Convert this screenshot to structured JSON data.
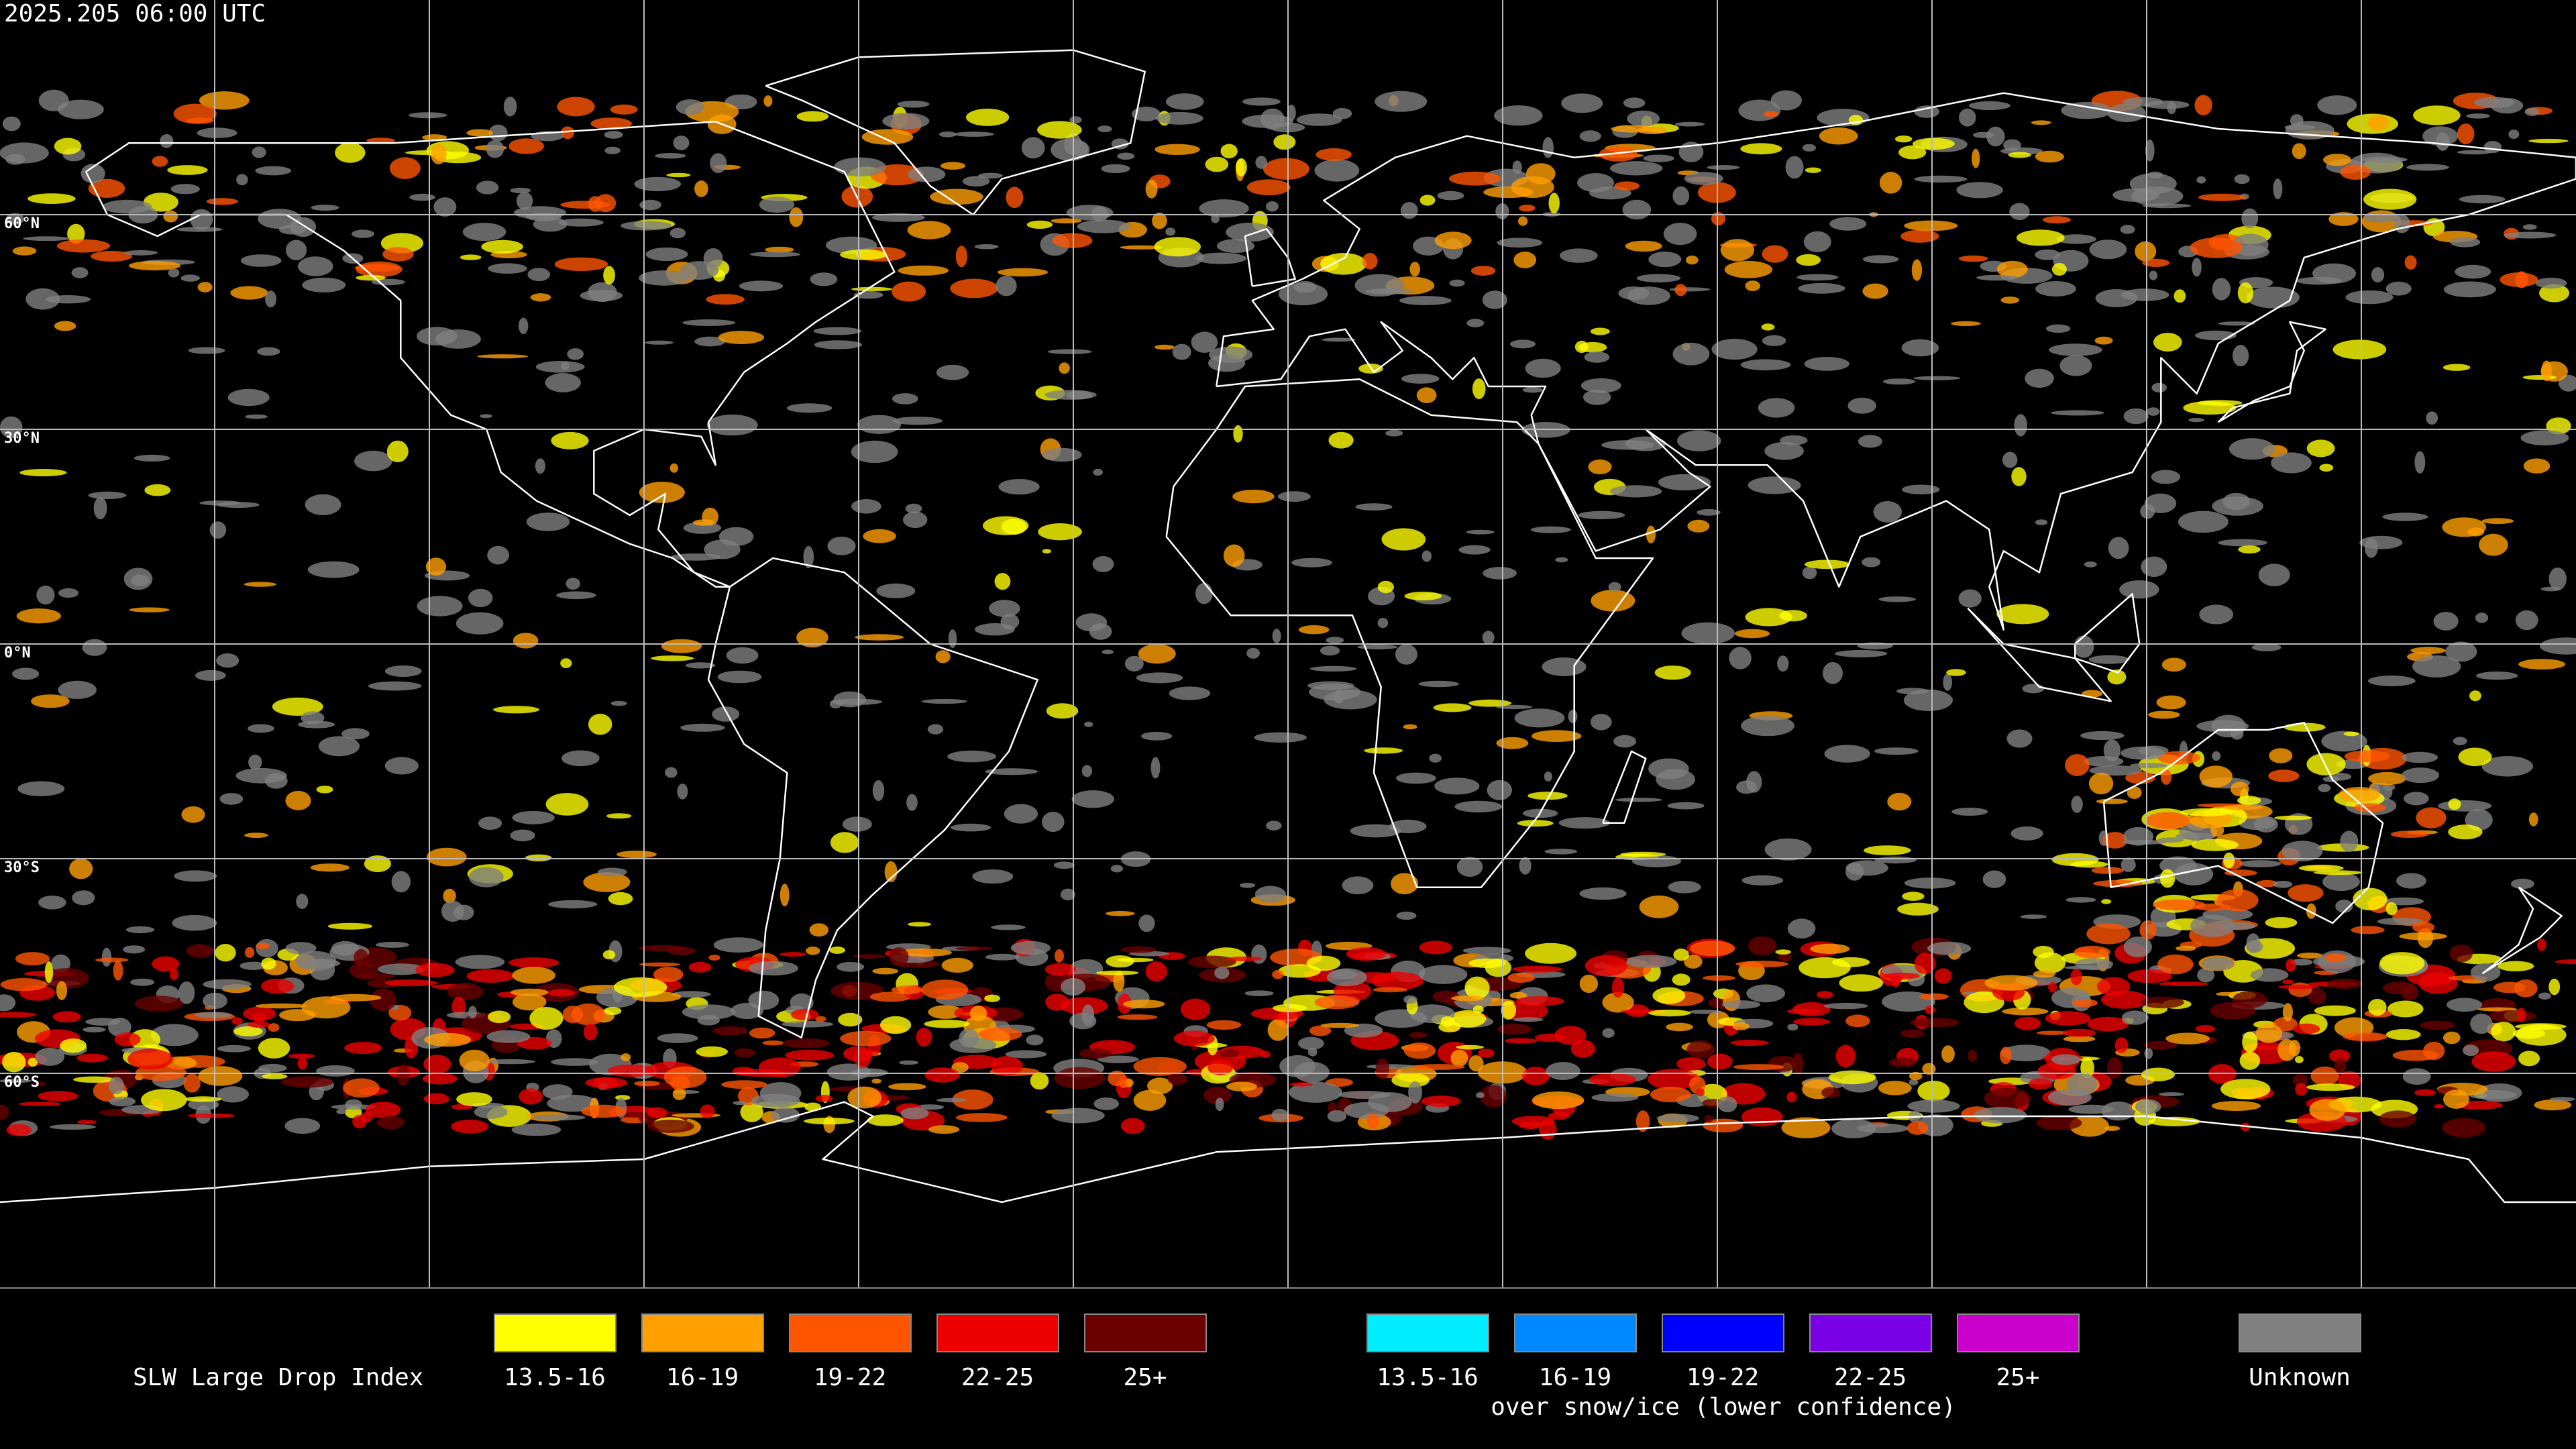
{
  "timestamp": "2025.205 06:00 UTC",
  "latitude_labels": [
    "60°N",
    "30°N",
    "0°N",
    "30°S",
    "60°S"
  ],
  "legend": {
    "title": "SLW Large Drop Index",
    "groups": [
      {
        "items": [
          {
            "label": "13.5-16",
            "color": "#ffff00"
          },
          {
            "label": "16-19",
            "color": "#ff9f00"
          },
          {
            "label": "19-22",
            "color": "#ff5500"
          },
          {
            "label": "22-25",
            "color": "#ee0000"
          },
          {
            "label": "25+",
            "color": "#6a0000"
          }
        ]
      },
      {
        "items": [
          {
            "label": "13.5-16",
            "color": "#00eeff"
          },
          {
            "label": "16-19",
            "color": "#0088ff"
          },
          {
            "label": "19-22",
            "color": "#0000ff"
          },
          {
            "label": "22-25",
            "color": "#7a00e6"
          },
          {
            "label": "25+",
            "color": "#cc00cc"
          }
        ],
        "note": "over snow/ice (lower confidence)"
      }
    ],
    "unknown": {
      "label": "Unknown",
      "color": "#808080"
    }
  }
}
